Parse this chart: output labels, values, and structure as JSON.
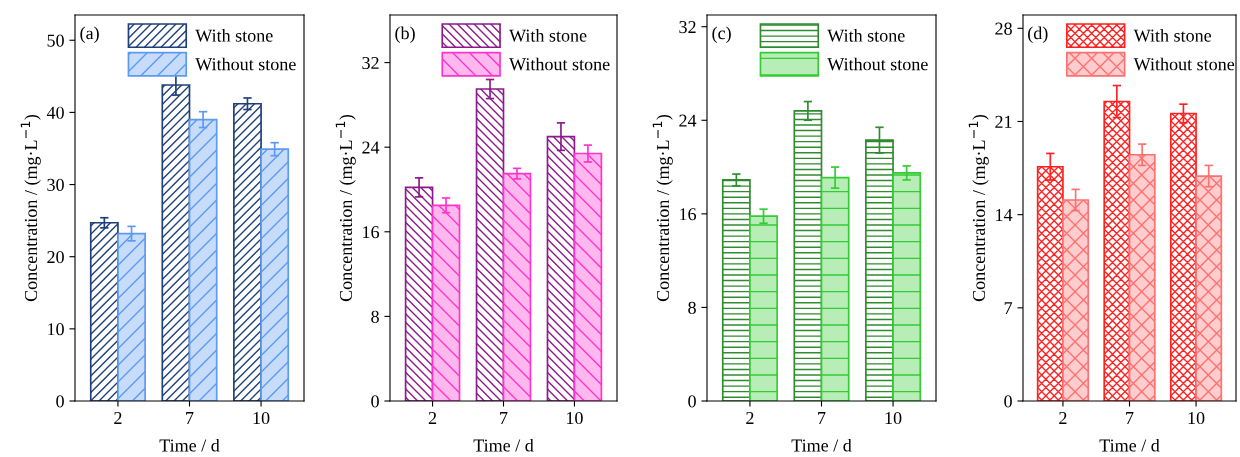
{
  "chart_data": [
    {
      "type": "bar",
      "categories": [
        "2",
        "7",
        "10"
      ],
      "xlabel": "Time / d",
      "ylabel": "Concentration / (mg·L$^{−1}$)",
      "ylim": [
        0,
        53.5
      ],
      "yticks": [
        0,
        10,
        20,
        30,
        40,
        50
      ],
      "legend": "top",
      "annotations": [
        "(a)"
      ],
      "series": [
        {
          "name": "With stone",
          "color": "#1f3f7a",
          "values": [
            24.7,
            43.8,
            41.2
          ],
          "errors": [
            0.7,
            1.4,
            0.8
          ]
        },
        {
          "name": "Without stone",
          "color": "#5b9af0",
          "values": [
            23.2,
            39.0,
            34.9
          ],
          "errors": [
            1.0,
            1.1,
            0.9
          ]
        }
      ]
    },
    {
      "type": "bar",
      "categories": [
        "2",
        "7",
        "10"
      ],
      "xlabel": "Time / d",
      "ylabel": "Concentration / (mg·L$^{−1}$)",
      "ylim": [
        0,
        36.5
      ],
      "yticks": [
        0,
        8,
        16,
        24,
        32
      ],
      "legend": "top",
      "annotations": [
        "(b)"
      ],
      "series": [
        {
          "name": "With stone",
          "color": "#8b1a8b",
          "values": [
            20.2,
            29.5,
            25.0
          ],
          "errors": [
            0.9,
            0.9,
            1.3
          ]
        },
        {
          "name": "Without stone",
          "color": "#ff33cc",
          "values": [
            18.5,
            21.5,
            23.4
          ],
          "errors": [
            0.7,
            0.5,
            0.8
          ]
        }
      ]
    },
    {
      "type": "bar",
      "categories": [
        "2",
        "7",
        "10"
      ],
      "xlabel": "Time / d",
      "ylabel": "Concentration / (mg·L$^{−1}$)",
      "ylim": [
        0,
        33
      ],
      "yticks": [
        0,
        8,
        16,
        24,
        32
      ],
      "legend": "top",
      "annotations": [
        "(c)"
      ],
      "series": [
        {
          "name": "With stone",
          "color": "#2e8b2e",
          "values": [
            18.9,
            24.8,
            22.3
          ],
          "errors": [
            0.5,
            0.8,
            1.1
          ]
        },
        {
          "name": "Without stone",
          "color": "#33cc33",
          "values": [
            15.8,
            19.1,
            19.5
          ],
          "errors": [
            0.6,
            0.9,
            0.6
          ]
        }
      ]
    },
    {
      "type": "bar",
      "categories": [
        "2",
        "7",
        "10"
      ],
      "xlabel": "Time / d",
      "ylabel": "Concentration / (mg·L$^{−1}$)",
      "ylim": [
        0,
        29
      ],
      "yticks": [
        0,
        7,
        14,
        21,
        28
      ],
      "legend": "top",
      "annotations": [
        "(d)"
      ],
      "series": [
        {
          "name": "With stone",
          "color": "#ff2020",
          "values": [
            17.6,
            22.5,
            21.6
          ],
          "errors": [
            1.0,
            1.2,
            0.7
          ]
        },
        {
          "name": "Without stone",
          "color": "#ff7070",
          "values": [
            15.1,
            18.5,
            16.9
          ],
          "errors": [
            0.8,
            0.8,
            0.8
          ]
        }
      ]
    }
  ]
}
